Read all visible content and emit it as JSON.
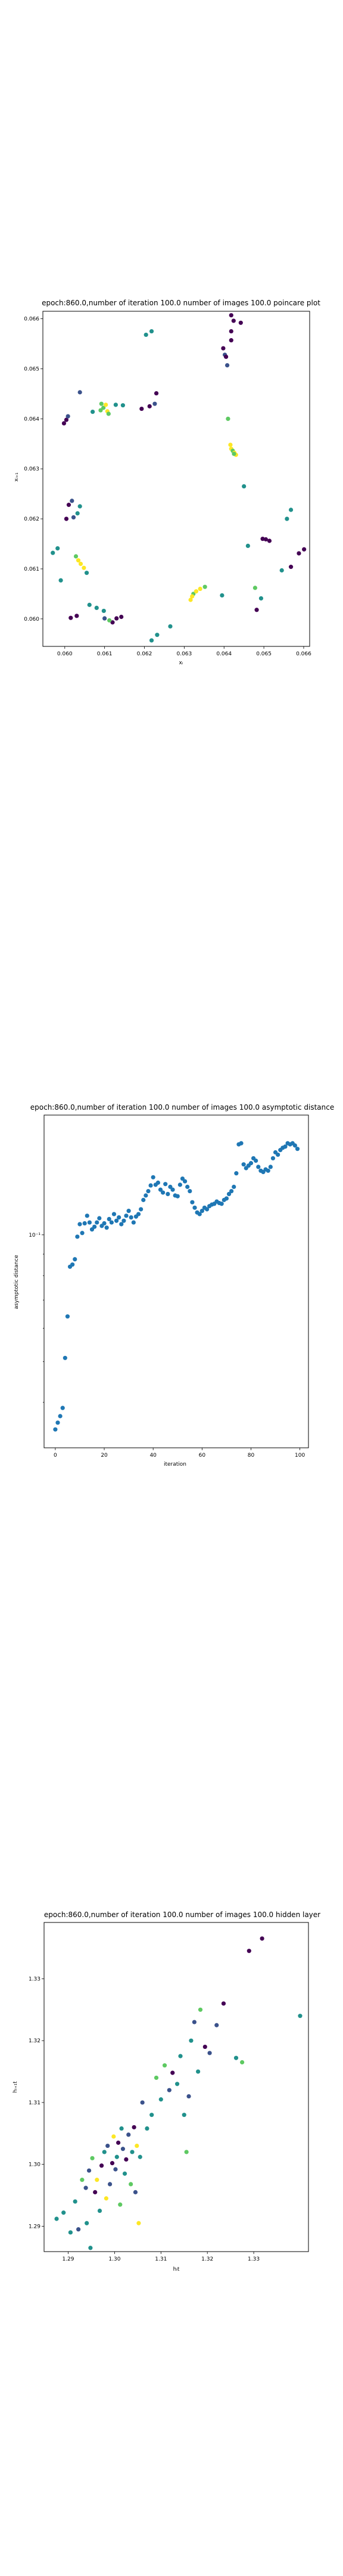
{
  "chart_data": [
    {
      "type": "scatter",
      "title": "epoch:860.0,number of iteration 100.0 number of images 100.0 poincare plot",
      "xlabel": "xᵢ",
      "ylabel": "xᵢ₊₁",
      "xlim": [
        0.05945,
        0.06615
      ],
      "ylim": [
        0.05945,
        0.06615
      ],
      "xticks": [
        0.06,
        0.061,
        0.062,
        0.063,
        0.064,
        0.065,
        0.066
      ],
      "xtick_labels": [
        "0.060",
        "0.061",
        "0.062",
        "0.063",
        "0.064",
        "0.065",
        "0.066"
      ],
      "yticks": [
        0.06,
        0.061,
        0.062,
        0.063,
        0.064,
        0.065,
        0.066
      ],
      "ytick_labels": [
        "0.060",
        "0.061",
        "0.062",
        "0.063",
        "0.064",
        "0.065",
        "0.066"
      ],
      "grid": false,
      "colormap": "viridis",
      "colors": [
        "#440154",
        "#3b528b",
        "#21918c",
        "#5ec962",
        "#fde725"
      ],
      "points": [
        [
          0.05998,
          0.06391,
          0
        ],
        [
          0.06004,
          0.06398,
          0
        ],
        [
          0.06008,
          0.06405,
          1
        ],
        [
          0.06038,
          0.06453,
          1
        ],
        [
          0.0607,
          0.06414,
          2
        ],
        [
          0.0609,
          0.06417,
          3
        ],
        [
          0.06097,
          0.06422,
          3
        ],
        [
          0.06103,
          0.06428,
          4
        ],
        [
          0.06092,
          0.0643,
          3
        ],
        [
          0.06107,
          0.06415,
          4
        ],
        [
          0.0611,
          0.0641,
          3
        ],
        [
          0.06128,
          0.06428,
          2
        ],
        [
          0.06146,
          0.06427,
          2
        ],
        [
          0.06193,
          0.0642,
          0
        ],
        [
          0.06213,
          0.06425,
          0
        ],
        [
          0.06226,
          0.0643,
          1
        ],
        [
          0.0623,
          0.06451,
          0
        ],
        [
          0.06204,
          0.06568,
          2
        ],
        [
          0.06218,
          0.06575,
          2
        ],
        [
          0.06398,
          0.06541,
          0
        ],
        [
          0.06402,
          0.06528,
          1
        ],
        [
          0.06408,
          0.06507,
          1
        ],
        [
          0.06405,
          0.06524,
          0
        ],
        [
          0.06418,
          0.06557,
          0
        ],
        [
          0.06418,
          0.06575,
          0
        ],
        [
          0.06424,
          0.06596,
          0
        ],
        [
          0.06442,
          0.06592,
          0
        ],
        [
          0.06418,
          0.06607,
          0
        ],
        [
          0.0641,
          0.064,
          3
        ],
        [
          0.06416,
          0.06348,
          4
        ],
        [
          0.06418,
          0.0634,
          4
        ],
        [
          0.06422,
          0.06336,
          3
        ],
        [
          0.06426,
          0.06332,
          4
        ],
        [
          0.0643,
          0.06328,
          4
        ],
        [
          0.06425,
          0.0633,
          3
        ],
        [
          0.0645,
          0.06265,
          2
        ],
        [
          0.0646,
          0.06146,
          2
        ],
        [
          0.06497,
          0.0616,
          0
        ],
        [
          0.06505,
          0.06159,
          0
        ],
        [
          0.06514,
          0.06156,
          0
        ],
        [
          0.06478,
          0.06062,
          3
        ],
        [
          0.06493,
          0.06041,
          2
        ],
        [
          0.06482,
          0.06018,
          0
        ],
        [
          0.06545,
          0.06097,
          2
        ],
        [
          0.06558,
          0.062,
          2
        ],
        [
          0.06568,
          0.06218,
          2
        ],
        [
          0.06568,
          0.06104,
          0
        ],
        [
          0.06588,
          0.06131,
          0
        ],
        [
          0.06601,
          0.06139,
          0
        ],
        [
          0.0597,
          0.06132,
          2
        ],
        [
          0.05982,
          0.06141,
          2
        ],
        [
          0.0599,
          0.06077,
          2
        ],
        [
          0.06004,
          0.062,
          0
        ],
        [
          0.0601,
          0.06228,
          0
        ],
        [
          0.06018,
          0.06236,
          1
        ],
        [
          0.06022,
          0.06203,
          1
        ],
        [
          0.06032,
          0.06211,
          2
        ],
        [
          0.06038,
          0.06225,
          2
        ],
        [
          0.06028,
          0.06125,
          3
        ],
        [
          0.06034,
          0.06117,
          4
        ],
        [
          0.0604,
          0.0611,
          4
        ],
        [
          0.06048,
          0.06102,
          4
        ],
        [
          0.06055,
          0.06092,
          2
        ],
        [
          0.06015,
          0.06002,
          0
        ],
        [
          0.0603,
          0.06006,
          0
        ],
        [
          0.06062,
          0.06028,
          2
        ],
        [
          0.0608,
          0.06022,
          2
        ],
        [
          0.06098,
          0.06016,
          2
        ],
        [
          0.061,
          0.06001,
          1
        ],
        [
          0.0612,
          0.05993,
          0
        ],
        [
          0.0613,
          0.06001,
          0
        ],
        [
          0.06142,
          0.06004,
          0
        ],
        [
          0.06112,
          0.05997,
          3
        ],
        [
          0.06218,
          0.05957,
          2
        ],
        [
          0.06232,
          0.05968,
          2
        ],
        [
          0.06265,
          0.05985,
          2
        ],
        [
          0.06316,
          0.06038,
          4
        ],
        [
          0.06323,
          0.0605,
          3
        ],
        [
          0.0633,
          0.06055,
          4
        ],
        [
          0.0634,
          0.0606,
          4
        ],
        [
          0.06352,
          0.06064,
          3
        ],
        [
          0.0632,
          0.06045,
          4
        ],
        [
          0.06395,
          0.06047,
          2
        ]
      ]
    },
    {
      "type": "scatter",
      "title": "epoch:860.0,number of iteration 100.0  number of images 100.0 asymptotic distance",
      "xlabel": "iteration",
      "ylabel": "asymptotic distance",
      "yscale": "log",
      "xlim": [
        -4.6,
        103.5
      ],
      "ylim": [
        0.0312,
        0.1925
      ],
      "xticks": [
        0,
        20,
        40,
        60,
        80,
        100
      ],
      "xtick_labels": [
        "0",
        "20",
        "40",
        "60",
        "80",
        "100"
      ],
      "ytick_major": [
        0.1
      ],
      "ytick_labels": [
        "10⁻¹"
      ],
      "grid": false,
      "color": "#1f77b4",
      "x": [
        0,
        1,
        2,
        3,
        4,
        5,
        6,
        7,
        8,
        9,
        10,
        11,
        12,
        13,
        14,
        15,
        16,
        17,
        18,
        19,
        20,
        21,
        22,
        23,
        24,
        25,
        26,
        27,
        28,
        29,
        30,
        31,
        32,
        33,
        34,
        35,
        36,
        37,
        38,
        39,
        40,
        41,
        42,
        43,
        44,
        45,
        46,
        47,
        48,
        49,
        50,
        51,
        52,
        53,
        54,
        55,
        56,
        57,
        58,
        59,
        60,
        61,
        62,
        63,
        64,
        65,
        66,
        67,
        68,
        69,
        70,
        71,
        72,
        73,
        74,
        75,
        76,
        77,
        78,
        79,
        80,
        81,
        82,
        83,
        84,
        85,
        86,
        87,
        88,
        89,
        90,
        91,
        92,
        93,
        94,
        95,
        96,
        97,
        98,
        99
      ],
      "y": [
        0.0345,
        0.0358,
        0.0371,
        0.0388,
        0.051,
        0.064,
        0.084,
        0.085,
        0.0875,
        0.099,
        0.106,
        0.101,
        0.1065,
        0.111,
        0.107,
        0.103,
        0.1045,
        0.107,
        0.1095,
        0.105,
        0.1065,
        0.104,
        0.109,
        0.107,
        0.112,
        0.108,
        0.11,
        0.106,
        0.108,
        0.111,
        0.114,
        0.11,
        0.107,
        0.1105,
        0.112,
        0.115,
        0.121,
        0.124,
        0.127,
        0.131,
        0.137,
        0.1315,
        0.133,
        0.128,
        0.126,
        0.132,
        0.125,
        0.13,
        0.128,
        0.124,
        0.1235,
        0.1315,
        0.136,
        0.134,
        0.13,
        0.127,
        0.1195,
        0.116,
        0.113,
        0.112,
        0.114,
        0.116,
        0.115,
        0.117,
        0.118,
        0.1185,
        0.12,
        0.119,
        0.1185,
        0.121,
        0.122,
        0.125,
        0.127,
        0.13,
        0.14,
        0.164,
        0.165,
        0.147,
        0.144,
        0.146,
        0.148,
        0.152,
        0.15,
        0.145,
        0.142,
        0.141,
        0.143,
        0.142,
        0.145,
        0.152,
        0.157,
        0.155,
        0.159,
        0.161,
        0.162,
        0.165,
        0.164,
        0.165,
        0.163,
        0.16
      ]
    },
    {
      "type": "scatter",
      "title": "epoch:860.0,number of iteration 100.0  number of images 100.0 hidden layer",
      "xlabel": "hᵢt",
      "ylabel": "hᵢ₊₁t",
      "xlim": [
        1.2848,
        1.3418
      ],
      "ylim": [
        1.2859,
        1.3391
      ],
      "xticks": [
        1.29,
        1.3,
        1.31,
        1.32,
        1.33
      ],
      "xtick_labels": [
        "1.29",
        "1.30",
        "1.31",
        "1.32",
        "1.33"
      ],
      "yticks": [
        1.29,
        1.3,
        1.31,
        1.32,
        1.33
      ],
      "ytick_labels": [
        "1.29",
        "1.30",
        "1.31",
        "1.32",
        "1.33"
      ],
      "grid": false,
      "colormap": "viridis",
      "colors": [
        "#440154",
        "#3b528b",
        "#21918c",
        "#5ec962",
        "#fde725"
      ],
      "points": [
        [
          1.2875,
          1.2912,
          2
        ],
        [
          1.289,
          1.2922,
          2
        ],
        [
          1.2905,
          1.289,
          2
        ],
        [
          1.2915,
          1.294,
          2
        ],
        [
          1.2922,
          1.2895,
          1
        ],
        [
          1.293,
          1.2975,
          3
        ],
        [
          1.294,
          1.2905,
          2
        ],
        [
          1.2948,
          1.2865,
          2
        ],
        [
          1.2938,
          1.2962,
          1
        ],
        [
          1.2945,
          1.299,
          1
        ],
        [
          1.2952,
          1.301,
          3
        ],
        [
          1.2958,
          1.2955,
          0
        ],
        [
          1.2962,
          1.2975,
          4
        ],
        [
          1.2968,
          1.2925,
          2
        ],
        [
          1.2972,
          1.2998,
          0
        ],
        [
          1.2978,
          1.302,
          2
        ],
        [
          1.2982,
          1.2945,
          4
        ],
        [
          1.2985,
          1.303,
          1
        ],
        [
          1.299,
          1.2968,
          1
        ],
        [
          1.2995,
          1.3002,
          0
        ],
        [
          1.2998,
          1.3045,
          4
        ],
        [
          1.3002,
          1.2992,
          1
        ],
        [
          1.3005,
          1.3012,
          2
        ],
        [
          1.3008,
          1.3035,
          0
        ],
        [
          1.3012,
          1.2935,
          3
        ],
        [
          1.3015,
          1.3058,
          2
        ],
        [
          1.3018,
          1.3025,
          1
        ],
        [
          1.3022,
          1.2985,
          2
        ],
        [
          1.3025,
          1.3008,
          0
        ],
        [
          1.303,
          1.3048,
          1
        ],
        [
          1.3035,
          1.2968,
          3
        ],
        [
          1.3038,
          1.302,
          2
        ],
        [
          1.3042,
          1.306,
          0
        ],
        [
          1.3045,
          1.2955,
          1
        ],
        [
          1.3048,
          1.303,
          4
        ],
        [
          1.3052,
          1.2905,
          4
        ],
        [
          1.3055,
          1.3012,
          2
        ],
        [
          1.306,
          1.31,
          1
        ],
        [
          1.307,
          1.3058,
          2
        ],
        [
          1.308,
          1.308,
          2
        ],
        [
          1.309,
          1.314,
          3
        ],
        [
          1.31,
          1.3105,
          2
        ],
        [
          1.3108,
          1.316,
          3
        ],
        [
          1.3118,
          1.312,
          1
        ],
        [
          1.3125,
          1.3148,
          0
        ],
        [
          1.3135,
          1.313,
          2
        ],
        [
          1.3142,
          1.3175,
          2
        ],
        [
          1.315,
          1.308,
          2
        ],
        [
          1.3155,
          1.302,
          3
        ],
        [
          1.316,
          1.311,
          1
        ],
        [
          1.3165,
          1.32,
          2
        ],
        [
          1.3172,
          1.323,
          1
        ],
        [
          1.318,
          1.315,
          2
        ],
        [
          1.3185,
          1.325,
          3
        ],
        [
          1.3195,
          1.319,
          0
        ],
        [
          1.3205,
          1.318,
          1
        ],
        [
          1.322,
          1.3225,
          1
        ],
        [
          1.3235,
          1.326,
          0
        ],
        [
          1.3262,
          1.3172,
          2
        ],
        [
          1.3275,
          1.3165,
          3
        ],
        [
          1.329,
          1.3345,
          0
        ],
        [
          1.3318,
          1.3365,
          0
        ],
        [
          1.34,
          1.324,
          2
        ]
      ]
    }
  ]
}
